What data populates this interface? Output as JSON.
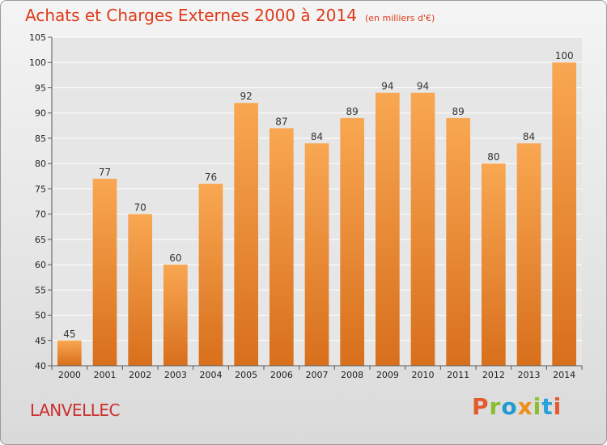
{
  "header": {
    "title": "Achats et Charges Externes 2000 à 2014",
    "subtitle": "(en milliers d'€)"
  },
  "footer": {
    "place": "LANVELLEC",
    "logo_text": "Proxiti"
  },
  "colors": {
    "title": "#de3a1a",
    "bar_light": "#f9a752",
    "bar_dark": "#d86f1c",
    "logo_letters": [
      "#e35a2b",
      "#8bbd2d",
      "#1f9bd1",
      "#ef8f1a",
      "#8bbd2d",
      "#2aa1d8",
      "#e35a2b"
    ]
  },
  "chart_data": {
    "type": "bar",
    "title": "Achats et Charges Externes 2000 à 2014",
    "subtitle": "(en milliers d'€)",
    "categories": [
      "2000",
      "2001",
      "2002",
      "2003",
      "2004",
      "2005",
      "2006",
      "2007",
      "2008",
      "2009",
      "2010",
      "2011",
      "2012",
      "2013",
      "2014"
    ],
    "values": [
      45,
      77,
      70,
      60,
      76,
      92,
      87,
      84,
      89,
      94,
      94,
      89,
      80,
      84,
      100
    ],
    "ylim": [
      40,
      105
    ],
    "yticks": [
      40,
      45,
      50,
      55,
      60,
      65,
      70,
      75,
      80,
      85,
      90,
      95,
      100,
      105
    ],
    "grid": true,
    "legend": "none"
  }
}
